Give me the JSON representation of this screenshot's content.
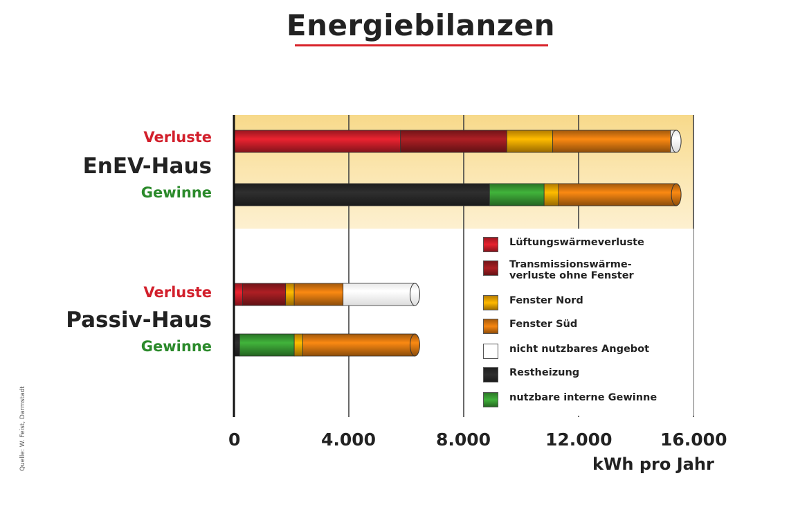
{
  "source_note": "Quelle: W. Feist, Darmstadt",
  "chart_data": {
    "type": "bar",
    "title": "Energiebilanzen",
    "xlabel": "kWh pro Jahr",
    "xlim": [
      0,
      16000
    ],
    "xticks": [
      "0",
      "4.000",
      "8.000",
      "12.000",
      "16.000"
    ],
    "grid": true,
    "legend_position": "bottom-right",
    "groups": [
      {
        "name": "EnEV-Haus",
        "rows": [
          {
            "label": "Verluste",
            "segments": [
              {
                "series": "Lüftungswärmeverluste",
                "value": 5800
              },
              {
                "series": "Transmissionswärmeverluste ohne Fenster",
                "value": 3700
              },
              {
                "series": "Fenster Nord",
                "value": 1600
              },
              {
                "series": "Fenster Süd",
                "value": 4100
              },
              {
                "series": "nicht nutzbares Angebot",
                "value": 200
              }
            ]
          },
          {
            "label": "Gewinne",
            "segments": [
              {
                "series": "Restheizung",
                "value": 8900
              },
              {
                "series": "nutzbare interne Gewinne",
                "value": 1900
              },
              {
                "series": "Fenster Nord",
                "value": 500
              },
              {
                "series": "Fenster Süd",
                "value": 4100
              }
            ]
          }
        ]
      },
      {
        "name": "Passiv-Haus",
        "rows": [
          {
            "label": "Verluste",
            "segments": [
              {
                "series": "Lüftungswärmeverluste",
                "value": 300
              },
              {
                "series": "Transmissionswärmeverluste ohne Fenster",
                "value": 1500
              },
              {
                "series": "Fenster Nord",
                "value": 300
              },
              {
                "series": "Fenster Süd",
                "value": 1700
              },
              {
                "series": "nicht nutzbares Angebot",
                "value": 2500
              }
            ]
          },
          {
            "label": "Gewinne",
            "segments": [
              {
                "series": "Restheizung",
                "value": 200
              },
              {
                "series": "nutzbare interne Gewinne",
                "value": 1900
              },
              {
                "series": "Fenster Nord",
                "value": 300
              },
              {
                "series": "Fenster Süd",
                "value": 3900
              }
            ]
          }
        ]
      }
    ],
    "legend": [
      {
        "series": "Lüftungswärmeverluste",
        "lines": [
          "Lüftungswärmeverluste"
        ],
        "color": "#d21f2b"
      },
      {
        "series": "Transmissionswärmeverluste ohne Fenster",
        "lines": [
          "Transmissionswärme-",
          "verluste ohne Fenster"
        ],
        "color": "#9b1c20"
      },
      {
        "series": "Fenster Nord",
        "lines": [
          "Fenster Nord"
        ],
        "color": "#f5a800"
      },
      {
        "series": "Fenster Süd",
        "lines": [
          "Fenster Süd"
        ],
        "color": "#e07a10"
      },
      {
        "series": "nicht nutzbares Angebot",
        "lines": [
          "nicht nutzbares Angebot"
        ],
        "color": "#ffffff"
      },
      {
        "series": "Restheizung",
        "lines": [
          "Restheizung"
        ],
        "color": "#2a2a2a"
      },
      {
        "series": "nutzbare interne Gewinne",
        "lines": [
          "nutzbare interne Gewinne"
        ],
        "color": "#3aa035"
      }
    ],
    "background_color": "#fbe3a6"
  }
}
